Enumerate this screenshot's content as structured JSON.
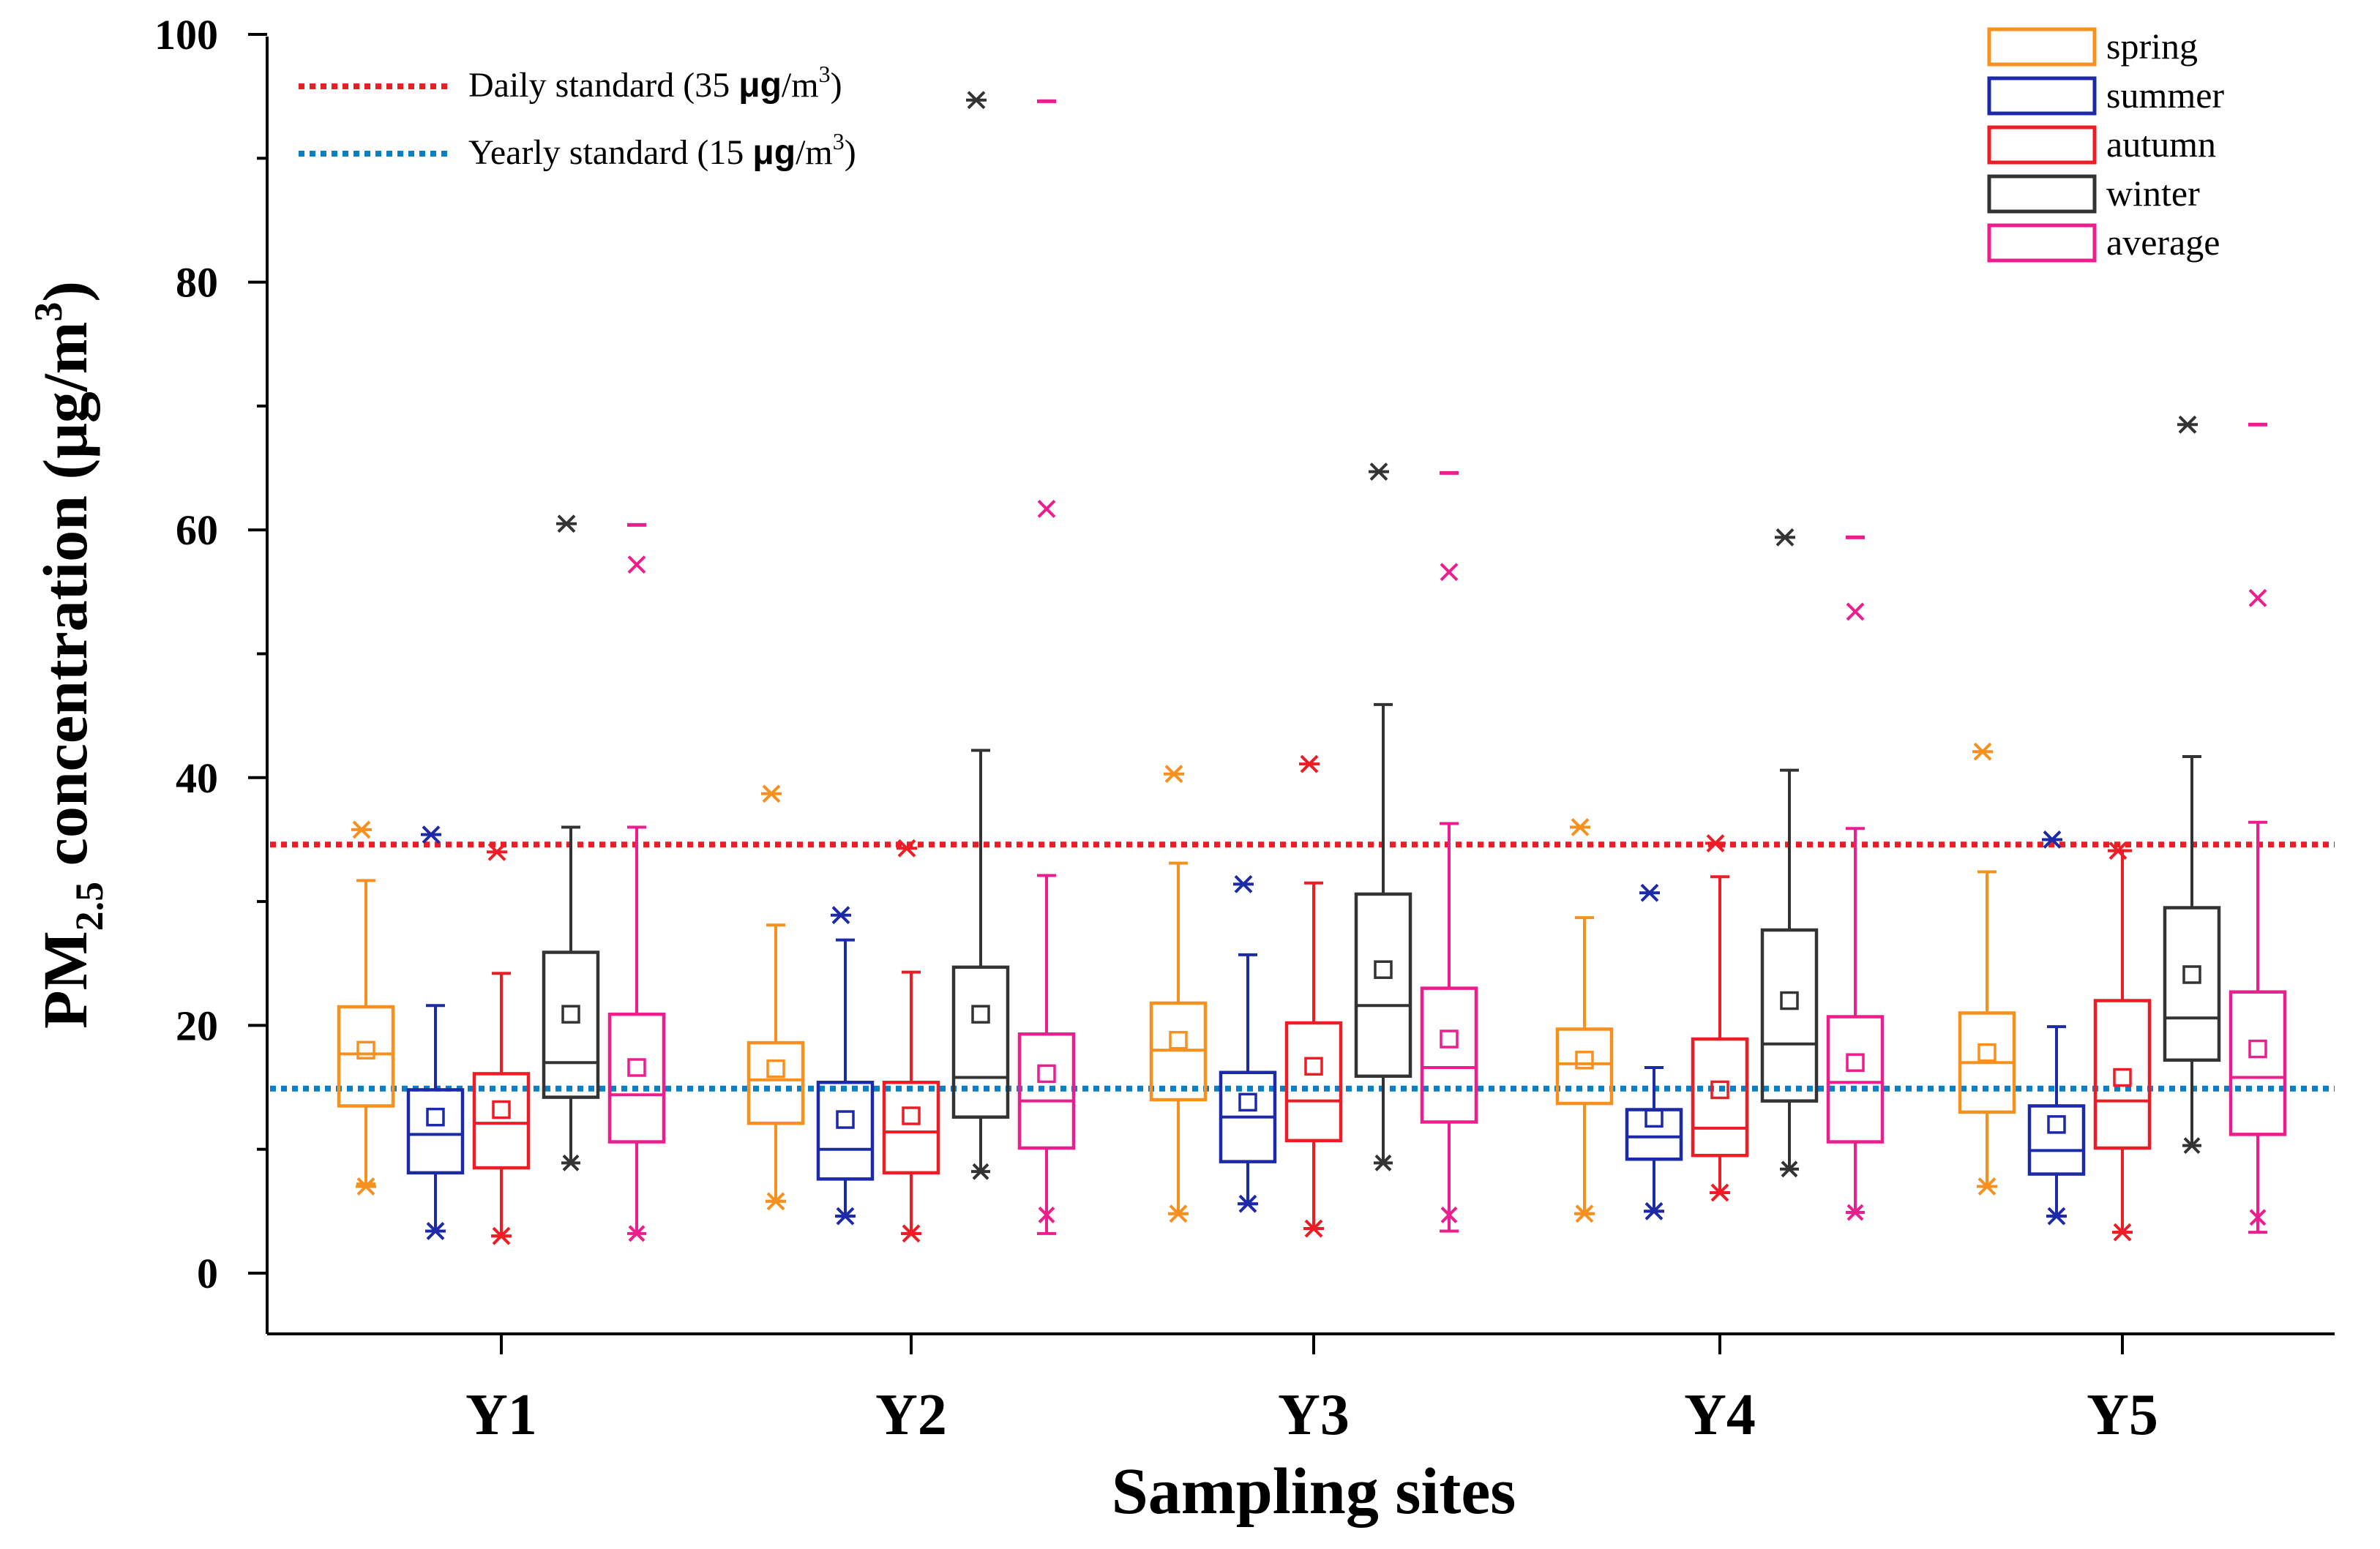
{
  "chart_data": {
    "type": "box",
    "title": "",
    "xlabel": "Sampling sites",
    "ylabel": {
      "prefix": "PM",
      "subscript": "2.5",
      "middle": " concentration (μg/m",
      "superscript": "3",
      "suffix": ")"
    },
    "ylim": [
      0,
      100
    ],
    "yticks": [
      "0",
      "20",
      "40",
      "60",
      "80",
      "100"
    ],
    "categories": [
      "Y1",
      "Y2",
      "Y3",
      "Y4",
      "Y5"
    ],
    "reference_lines": [
      {
        "name": "Daily standard",
        "value": 34.6,
        "color": "#ee1c25",
        "legend": {
          "prefix": "Daily  standard (35 ",
          "unit": "μg",
          "rest": "/m",
          "sup": "3",
          "close": ")"
        }
      },
      {
        "name": "Yearly standard",
        "value": 14.9,
        "color": "#0a7fc4",
        "legend": {
          "prefix": "Yearly  standard (15 ",
          "unit": "μg",
          "rest": "/m",
          "sup": "3",
          "close": ")"
        }
      }
    ],
    "legend_placement": "top-right",
    "series": [
      {
        "name": "spring",
        "color": "#f7901e",
        "boxes": [
          {
            "whislo": 7.2,
            "q1": 13.5,
            "med": 17.7,
            "q3": 21.5,
            "whishi": 31.7,
            "mean": 18.0,
            "min": 7.0,
            "max": 35.8,
            "outliers": []
          },
          {
            "whislo": 5.8,
            "q1": 12.1,
            "med": 15.6,
            "q3": 18.6,
            "whishi": 28.1,
            "mean": 16.5,
            "min": 5.8,
            "max": 38.7,
            "outliers": []
          },
          {
            "whislo": 4.8,
            "q1": 14.0,
            "med": 18.0,
            "q3": 21.8,
            "whishi": 33.1,
            "mean": 18.8,
            "min": 4.8,
            "max": 40.3,
            "outliers": []
          },
          {
            "whislo": 4.8,
            "q1": 13.7,
            "med": 16.9,
            "q3": 19.7,
            "whishi": 28.7,
            "mean": 17.2,
            "min": 4.8,
            "max": 36.0,
            "outliers": []
          },
          {
            "whislo": 7.0,
            "q1": 13.0,
            "med": 17.0,
            "q3": 21.0,
            "whishi": 32.4,
            "mean": 17.8,
            "min": 7.0,
            "max": 42.1,
            "outliers": []
          }
        ]
      },
      {
        "name": "summer",
        "color": "#1c2aa8",
        "boxes": [
          {
            "whislo": 3.4,
            "q1": 8.1,
            "med": 11.2,
            "q3": 14.8,
            "whishi": 21.6,
            "mean": 12.6,
            "min": 3.4,
            "max": 35.4,
            "outliers": []
          },
          {
            "whislo": 4.6,
            "q1": 7.6,
            "med": 10.0,
            "q3": 15.4,
            "whishi": 26.9,
            "mean": 12.4,
            "min": 4.6,
            "max": 28.9,
            "outliers": []
          },
          {
            "whislo": 5.6,
            "q1": 9.0,
            "med": 12.6,
            "q3": 16.2,
            "whishi": 25.7,
            "mean": 13.8,
            "min": 5.6,
            "max": 31.4,
            "outliers": []
          },
          {
            "whislo": 5.0,
            "q1": 9.2,
            "med": 11.0,
            "q3": 13.2,
            "whishi": 16.6,
            "mean": 12.5,
            "min": 5.0,
            "max": 30.7,
            "outliers": []
          },
          {
            "whislo": 4.6,
            "q1": 8.0,
            "med": 9.9,
            "q3": 13.5,
            "whishi": 19.9,
            "mean": 12.0,
            "min": 4.6,
            "max": 35.0,
            "outliers": []
          }
        ]
      },
      {
        "name": "autumn",
        "color": "#ee1c25",
        "boxes": [
          {
            "whislo": 3.0,
            "q1": 8.5,
            "med": 12.1,
            "q3": 16.1,
            "whishi": 24.2,
            "mean": 13.2,
            "min": 3.0,
            "max": 34.0,
            "outliers": []
          },
          {
            "whislo": 3.2,
            "q1": 8.1,
            "med": 11.4,
            "q3": 15.4,
            "whishi": 24.3,
            "mean": 12.7,
            "min": 3.2,
            "max": 34.3,
            "outliers": []
          },
          {
            "whislo": 3.6,
            "q1": 10.7,
            "med": 13.9,
            "q3": 20.2,
            "whishi": 31.5,
            "mean": 16.7,
            "min": 3.6,
            "max": 41.1,
            "outliers": []
          },
          {
            "whislo": 6.5,
            "q1": 9.5,
            "med": 11.7,
            "q3": 18.9,
            "whishi": 32.0,
            "mean": 14.8,
            "min": 6.5,
            "max": 34.7,
            "outliers": []
          },
          {
            "whislo": 3.3,
            "q1": 10.1,
            "med": 13.9,
            "q3": 22.0,
            "whishi": 34.1,
            "mean": 15.8,
            "min": 3.3,
            "max": 34.1,
            "outliers": []
          }
        ]
      },
      {
        "name": "winter",
        "color": "#333333",
        "boxes": [
          {
            "whislo": 8.9,
            "q1": 14.2,
            "med": 17.0,
            "q3": 25.9,
            "whishi": 36.0,
            "mean": 20.9,
            "min": 8.9,
            "max": 60.5,
            "outliers": []
          },
          {
            "whislo": 8.2,
            "q1": 12.6,
            "med": 15.8,
            "q3": 24.7,
            "whishi": 42.2,
            "mean": 20.9,
            "min": 8.2,
            "max": 94.7,
            "outliers": []
          },
          {
            "whislo": 8.9,
            "q1": 15.9,
            "med": 21.6,
            "q3": 30.6,
            "whishi": 45.9,
            "mean": 24.5,
            "min": 8.9,
            "max": 64.7,
            "outliers": []
          },
          {
            "whislo": 8.4,
            "q1": 13.9,
            "med": 18.5,
            "q3": 27.7,
            "whishi": 40.6,
            "mean": 22.0,
            "min": 8.4,
            "max": 59.4,
            "outliers": []
          },
          {
            "whislo": 10.3,
            "q1": 17.2,
            "med": 20.6,
            "q3": 29.5,
            "whishi": 41.7,
            "mean": 24.1,
            "min": 10.3,
            "max": 68.5,
            "outliers": []
          }
        ]
      },
      {
        "name": "average",
        "color": "#ec1d8c",
        "boxes": [
          {
            "whislo": 3.2,
            "q1": 10.6,
            "med": 14.4,
            "q3": 20.9,
            "whishi": 36.0,
            "mean": 16.6,
            "min": 3.2,
            "max": 60.4,
            "outliers": [
              57.2
            ]
          },
          {
            "whislo": 3.2,
            "q1": 10.1,
            "med": 13.9,
            "q3": 19.3,
            "whishi": 32.1,
            "mean": 16.1,
            "min": 4.7,
            "max": 94.6,
            "outliers": [
              61.7
            ]
          },
          {
            "whislo": 3.4,
            "q1": 12.2,
            "med": 16.6,
            "q3": 23.0,
            "whishi": 36.3,
            "mean": 18.9,
            "min": 4.7,
            "max": 64.6,
            "outliers": [
              56.6
            ]
          },
          {
            "whislo": 4.9,
            "q1": 10.6,
            "med": 15.4,
            "q3": 20.7,
            "whishi": 35.9,
            "mean": 17.0,
            "min": 4.9,
            "max": 59.4,
            "outliers": [
              53.4
            ]
          },
          {
            "whislo": 3.3,
            "q1": 11.2,
            "med": 15.8,
            "q3": 22.7,
            "whishi": 36.4,
            "mean": 18.1,
            "min": 4.5,
            "max": 68.5,
            "outliers": [
              54.5
            ]
          }
        ]
      }
    ]
  }
}
